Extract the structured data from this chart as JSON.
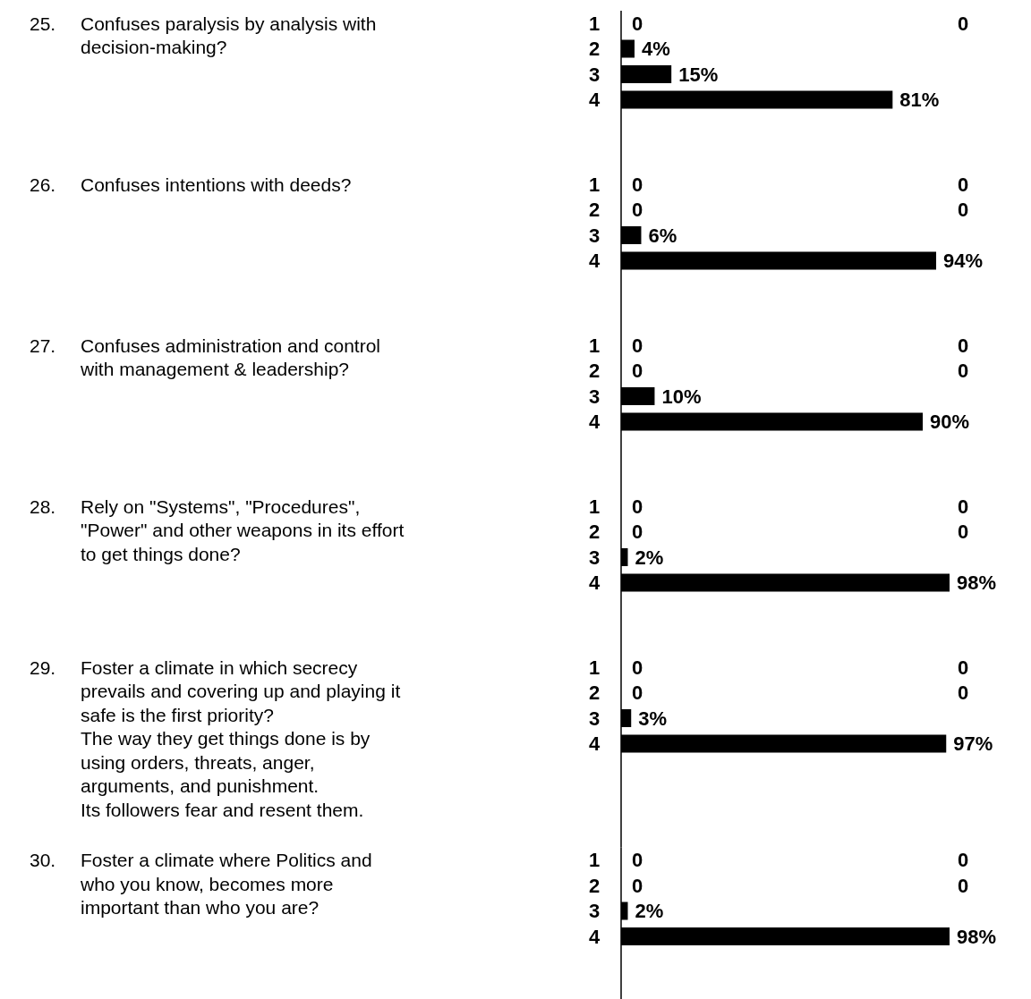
{
  "chart_data": [
    {
      "type": "bar",
      "orientation": "horizontal",
      "title": "25.\nConfuses paralysis by analysis with\ndecision-making?",
      "categories": [
        "1",
        "2",
        "3",
        "4"
      ],
      "values": [
        0,
        4,
        15,
        81
      ],
      "value_labels": [
        "0",
        "4%",
        "15%",
        "81%"
      ],
      "color": "#000000",
      "annotations": [
        "0"
      ]
    },
    {
      "type": "bar",
      "orientation": "horizontal",
      "title": "26.\nConfuses intentions with deeds?",
      "categories": [
        "1",
        "2",
        "3",
        "4"
      ],
      "values": [
        0,
        0,
        6,
        94
      ],
      "value_labels": [
        "0",
        "0",
        "6%",
        "94%"
      ],
      "color": "#000000",
      "annotations": [
        "0",
        "0"
      ]
    },
    {
      "type": "bar",
      "orientation": "horizontal",
      "title": "27.\nConfuses administration and control\nwith management & leadership?",
      "categories": [
        "1",
        "2",
        "3",
        "4"
      ],
      "values": [
        0,
        0,
        10,
        90
      ],
      "value_labels": [
        "0",
        "0",
        "10%",
        "90%"
      ],
      "color": "#000000",
      "annotations": [
        "0",
        "0"
      ]
    },
    {
      "type": "bar",
      "orientation": "horizontal",
      "title": "28.\nRely on \"Systems\", \"Procedures\",\n\"Power\" and other weapons in its effort\nto get things done?",
      "categories": [
        "1",
        "2",
        "3",
        "4"
      ],
      "values": [
        0,
        0,
        2,
        98
      ],
      "value_labels": [
        "0",
        "0",
        "2%",
        "98%"
      ],
      "color": "#000000",
      "annotations": [
        "0",
        "0"
      ]
    },
    {
      "type": "bar",
      "orientation": "horizontal",
      "title": "29.\nFoster a climate in which secrecy\nprevails and covering up and playing it\nsafe is the first priority?\nThe way they get things done is by\nusing orders, threats, anger,\narguments, and punishment.\nIts followers fear and resent them.",
      "categories": [
        "1",
        "2",
        "3",
        "4"
      ],
      "values": [
        0,
        0,
        3,
        97
      ],
      "value_labels": [
        "0",
        "0",
        "3%",
        "97%"
      ],
      "color": "#000000",
      "annotations": [
        "0",
        "0"
      ]
    },
    {
      "type": "bar",
      "orientation": "horizontal",
      "title": "30.\nFoster a climate where Politics and\nwho you know, becomes more\nimportant than who you are?",
      "categories": [
        "1",
        "2",
        "3",
        "4"
      ],
      "values": [
        0,
        0,
        2,
        98
      ],
      "value_labels": [
        "0",
        "0",
        "2%",
        "98%"
      ],
      "color": "#000000",
      "annotations": [
        "0",
        "0"
      ]
    }
  ]
}
